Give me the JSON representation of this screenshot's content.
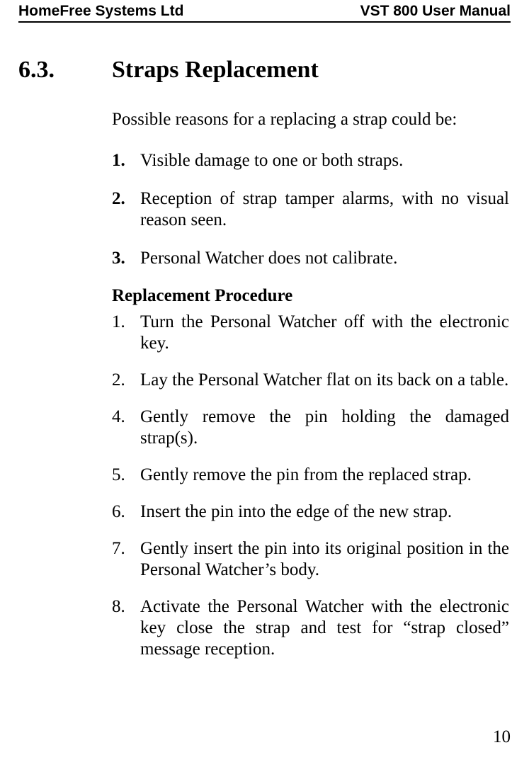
{
  "header": {
    "left": "HomeFree Systems Ltd",
    "right": "VST 800 User Manual"
  },
  "section": {
    "number": "6.3.",
    "title": "Straps Replacement"
  },
  "intro": "Possible reasons for a replacing a strap could be:",
  "reasons": [
    {
      "num": "1.",
      "text": "Visible damage to one or both straps."
    },
    {
      "num": "2.",
      "text": "Reception of strap tamper alarms, with no visual reason seen."
    },
    {
      "num": "3.",
      "text": "Personal Watcher does not calibrate."
    }
  ],
  "subheading": "Replacement Procedure",
  "steps": [
    {
      "num": "1.",
      "text": "Turn the Personal Watcher off with the electronic key."
    },
    {
      "num": "2.",
      "text": "Lay the Personal Watcher flat on its back on a table."
    },
    {
      "num": "4.",
      "text": "Gently remove the pin holding the damaged strap(s)."
    },
    {
      "num": "5.",
      "text": " Gently remove the pin from the replaced strap."
    },
    {
      "num": "6.",
      "text": "Insert the pin into the edge of the new strap."
    },
    {
      "num": "7.",
      "text": "Gently insert the pin into its original position in the Personal Watcher’s body."
    },
    {
      "num": "8.",
      "text": "Activate the Personal Watcher with the electronic key close the strap and test for “strap closed” message reception."
    }
  ],
  "page_number": "10"
}
